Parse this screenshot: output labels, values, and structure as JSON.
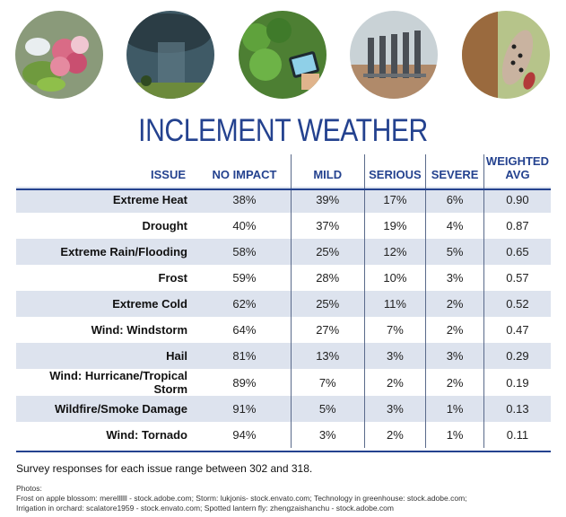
{
  "photos": [
    {
      "name": "apple-blossom-photo"
    },
    {
      "name": "storm-photo"
    },
    {
      "name": "greenhouse-tablet-photo"
    },
    {
      "name": "orchard-irrigation-photo"
    },
    {
      "name": "spotted-lanternfly-photo"
    }
  ],
  "title": "INCLEMENT WEATHER",
  "headers": {
    "issue": "ISSUE",
    "no_impact": "NO IMPACT",
    "mild": "MILD",
    "serious": "SERIOUS",
    "severe": "SEVERE",
    "weighted_line1": "WEIGHTED",
    "weighted_line2": "AVG"
  },
  "rows": [
    {
      "issue": "Extreme Heat",
      "no_impact": "38%",
      "mild": "39%",
      "serious": "17%",
      "severe": "6%",
      "weighted": "0.90"
    },
    {
      "issue": "Drought",
      "no_impact": "40%",
      "mild": "37%",
      "serious": "19%",
      "severe": "4%",
      "weighted": "0.87"
    },
    {
      "issue": "Extreme Rain/Flooding",
      "no_impact": "58%",
      "mild": "25%",
      "serious": "12%",
      "severe": "5%",
      "weighted": "0.65"
    },
    {
      "issue": "Frost",
      "no_impact": "59%",
      "mild": "28%",
      "serious": "10%",
      "severe": "3%",
      "weighted": "0.57"
    },
    {
      "issue": "Extreme Cold",
      "no_impact": "62%",
      "mild": "25%",
      "serious": "11%",
      "severe": "2%",
      "weighted": "0.52"
    },
    {
      "issue": "Wind: Windstorm",
      "no_impact": "64%",
      "mild": "27%",
      "serious": "7%",
      "severe": "2%",
      "weighted": "0.47"
    },
    {
      "issue": "Hail",
      "no_impact": "81%",
      "mild": "13%",
      "serious": "3%",
      "severe": "3%",
      "weighted": "0.29"
    },
    {
      "issue": "Wind: Hurricane/Tropical Storm",
      "no_impact": "89%",
      "mild": "7%",
      "serious": "2%",
      "severe": "2%",
      "weighted": "0.19"
    },
    {
      "issue": "Wildfire/Smoke Damage",
      "no_impact": "91%",
      "mild": "5%",
      "serious": "3%",
      "severe": "1%",
      "weighted": "0.13"
    },
    {
      "issue": "Wind: Tornado",
      "no_impact": "94%",
      "mild": "3%",
      "serious": "2%",
      "severe": "1%",
      "weighted": "0.11"
    }
  ],
  "note": "Survey responses for each issue range between 302 and 318.",
  "credits_heading": "Photos:",
  "credits_line1": "Frost on apple blossom: merellllll - stock.adobe.com; Storm: lukjonis- stock.envato.com; Technology in greenhouse: stock.adobe.com;",
  "credits_line2": "Irrigation in orchard: scalatore1959 - stock.envato.com; Spotted lantern fly: zhengzaishanchu - stock.adobe.com",
  "colors": {
    "accent": "#24428f",
    "row_shade": "#dde3ee"
  }
}
